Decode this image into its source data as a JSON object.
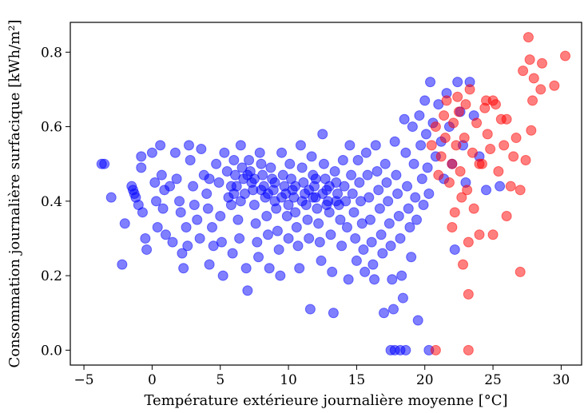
{
  "chart_data": {
    "type": "scatter",
    "xlabel": "Température extérieure journalière moyenne [°C]",
    "ylabel": "Consommation journalière surfacique [kWh/m²]",
    "xlim": [
      -6,
      31.5
    ],
    "ylim": [
      -0.04,
      0.88
    ],
    "x_ticks": [
      -5,
      0,
      5,
      10,
      15,
      20,
      25,
      30
    ],
    "y_ticks": [
      0.0,
      0.2,
      0.4,
      0.6,
      0.8
    ],
    "x_tick_labels": [
      "−5",
      "0",
      "5",
      "10",
      "15",
      "20",
      "25",
      "30"
    ],
    "y_tick_labels": [
      "0.0",
      "0.2",
      "0.4",
      "0.6",
      "0.8"
    ],
    "grid": false,
    "series": [
      {
        "color": "#0000ff",
        "points": [
          [
            -3.7,
            0.5
          ],
          [
            -3.5,
            0.5
          ],
          [
            -3.0,
            0.41
          ],
          [
            -2.2,
            0.23
          ],
          [
            -2.0,
            0.34
          ],
          [
            -1.5,
            0.44
          ],
          [
            -1.4,
            0.43
          ],
          [
            -1.3,
            0.42
          ],
          [
            -1.2,
            0.41
          ],
          [
            -1.0,
            0.39
          ],
          [
            -0.8,
            0.52
          ],
          [
            -0.8,
            0.49
          ],
          [
            -0.7,
            0.37
          ],
          [
            -0.5,
            0.3
          ],
          [
            -0.4,
            0.27
          ],
          [
            0.0,
            0.53
          ],
          [
            0.2,
            0.45
          ],
          [
            0.3,
            0.4
          ],
          [
            0.4,
            0.33
          ],
          [
            0.6,
            0.55
          ],
          [
            0.7,
            0.47
          ],
          [
            0.8,
            0.38
          ],
          [
            0.9,
            0.43
          ],
          [
            1.0,
            0.31
          ],
          [
            1.3,
            0.44
          ],
          [
            1.5,
            0.29
          ],
          [
            1.7,
            0.53
          ],
          [
            1.8,
            0.46
          ],
          [
            2.0,
            0.4
          ],
          [
            2.1,
            0.37
          ],
          [
            2.2,
            0.26
          ],
          [
            2.3,
            0.22
          ],
          [
            2.5,
            0.33
          ],
          [
            2.6,
            0.28
          ],
          [
            2.7,
            0.55
          ],
          [
            2.8,
            0.51
          ],
          [
            3.0,
            0.44
          ],
          [
            3.1,
            0.39
          ],
          [
            3.3,
            0.35
          ],
          [
            3.5,
            0.3
          ],
          [
            3.6,
            0.54
          ],
          [
            3.8,
            0.47
          ],
          [
            4.0,
            0.42
          ],
          [
            4.1,
            0.38
          ],
          [
            4.2,
            0.23
          ],
          [
            4.4,
            0.33
          ],
          [
            4.5,
            0.28
          ],
          [
            4.7,
            0.5
          ],
          [
            4.9,
            0.45
          ],
          [
            5.0,
            0.36
          ],
          [
            5.1,
            0.29
          ],
          [
            5.2,
            0.2
          ],
          [
            5.3,
            0.53
          ],
          [
            5.5,
            0.48
          ],
          [
            5.6,
            0.41
          ],
          [
            5.8,
            0.39
          ],
          [
            5.9,
            0.26
          ],
          [
            6.0,
            0.51
          ],
          [
            6.1,
            0.47
          ],
          [
            6.2,
            0.44
          ],
          [
            6.3,
            0.35
          ],
          [
            6.4,
            0.3
          ],
          [
            6.5,
            0.55
          ],
          [
            6.6,
            0.49
          ],
          [
            6.7,
            0.46
          ],
          [
            6.8,
            0.42
          ],
          [
            6.9,
            0.22
          ],
          [
            7.0,
            0.16
          ],
          [
            7.1,
            0.51
          ],
          [
            7.2,
            0.48
          ],
          [
            7.3,
            0.45
          ],
          [
            7.4,
            0.43
          ],
          [
            7.5,
            0.39
          ],
          [
            7.6,
            0.34
          ],
          [
            7.7,
            0.29
          ],
          [
            7.8,
            0.25
          ],
          [
            7.9,
            0.53
          ],
          [
            8.0,
            0.5
          ],
          [
            8.1,
            0.47
          ],
          [
            8.2,
            0.44
          ],
          [
            8.3,
            0.41
          ],
          [
            8.4,
            0.36
          ],
          [
            8.5,
            0.31
          ],
          [
            8.6,
            0.22
          ],
          [
            8.7,
            0.49
          ],
          [
            8.8,
            0.46
          ],
          [
            8.9,
            0.43
          ],
          [
            9.0,
            0.4
          ],
          [
            9.1,
            0.38
          ],
          [
            9.2,
            0.32
          ],
          [
            9.3,
            0.27
          ],
          [
            9.4,
            0.2
          ],
          [
            9.5,
            0.53
          ],
          [
            9.6,
            0.47
          ],
          [
            9.7,
            0.44
          ],
          [
            9.8,
            0.42
          ],
          [
            9.9,
            0.36
          ],
          [
            10.0,
            0.3
          ],
          [
            10.1,
            0.5
          ],
          [
            10.2,
            0.46
          ],
          [
            10.3,
            0.43
          ],
          [
            10.4,
            0.41
          ],
          [
            10.5,
            0.37
          ],
          [
            10.6,
            0.33
          ],
          [
            10.7,
            0.28
          ],
          [
            10.8,
            0.22
          ],
          [
            10.9,
            0.55
          ],
          [
            11.0,
            0.49
          ],
          [
            11.1,
            0.45
          ],
          [
            11.2,
            0.42
          ],
          [
            11.3,
            0.39
          ],
          [
            11.4,
            0.35
          ],
          [
            11.5,
            0.3
          ],
          [
            11.6,
            0.11
          ],
          [
            11.7,
            0.52
          ],
          [
            11.8,
            0.47
          ],
          [
            11.9,
            0.44
          ],
          [
            12.0,
            0.41
          ],
          [
            12.1,
            0.38
          ],
          [
            12.2,
            0.34
          ],
          [
            12.3,
            0.29
          ],
          [
            12.4,
            0.24
          ],
          [
            12.5,
            0.58
          ],
          [
            12.6,
            0.5
          ],
          [
            12.7,
            0.46
          ],
          [
            12.8,
            0.43
          ],
          [
            12.9,
            0.4
          ],
          [
            13.0,
            0.37
          ],
          [
            13.1,
            0.31
          ],
          [
            13.2,
            0.21
          ],
          [
            13.3,
            0.1
          ],
          [
            13.4,
            0.48
          ],
          [
            13.5,
            0.45
          ],
          [
            13.6,
            0.42
          ],
          [
            13.7,
            0.39
          ],
          [
            13.8,
            0.35
          ],
          [
            13.9,
            0.28
          ],
          [
            14.0,
            0.51
          ],
          [
            14.1,
            0.44
          ],
          [
            14.2,
            0.4
          ],
          [
            14.3,
            0.33
          ],
          [
            14.4,
            0.19
          ],
          [
            14.5,
            0.55
          ],
          [
            14.6,
            0.47
          ],
          [
            14.7,
            0.42
          ],
          [
            14.8,
            0.37
          ],
          [
            14.9,
            0.3
          ],
          [
            15.0,
            0.24
          ],
          [
            15.1,
            0.51
          ],
          [
            15.2,
            0.45
          ],
          [
            15.3,
            0.4
          ],
          [
            15.4,
            0.34
          ],
          [
            15.5,
            0.27
          ],
          [
            15.6,
            0.21
          ],
          [
            15.7,
            0.53
          ],
          [
            15.8,
            0.47
          ],
          [
            15.9,
            0.41
          ],
          [
            16.0,
            0.35
          ],
          [
            16.1,
            0.29
          ],
          [
            16.2,
            0.23
          ],
          [
            16.3,
            0.19
          ],
          [
            16.4,
            0.55
          ],
          [
            16.5,
            0.48
          ],
          [
            16.6,
            0.43
          ],
          [
            16.7,
            0.38
          ],
          [
            16.8,
            0.31
          ],
          [
            16.9,
            0.26
          ],
          [
            17.0,
            0.1
          ],
          [
            17.1,
            0.5
          ],
          [
            17.2,
            0.45
          ],
          [
            17.3,
            0.4
          ],
          [
            17.4,
            0.34
          ],
          [
            17.5,
            0.28
          ],
          [
            17.6,
            0.19
          ],
          [
            17.7,
            0.11
          ],
          [
            17.8,
            0.56
          ],
          [
            17.9,
            0.47
          ],
          [
            18.0,
            0.42
          ],
          [
            18.1,
            0.36
          ],
          [
            18.2,
            0.3
          ],
          [
            18.3,
            0.2
          ],
          [
            18.4,
            0.14
          ],
          [
            18.5,
            0.62
          ],
          [
            18.6,
            0.53
          ],
          [
            18.7,
            0.44
          ],
          [
            18.8,
            0.38
          ],
          [
            18.9,
            0.33
          ],
          [
            19.0,
            0.25
          ],
          [
            19.1,
            0.6
          ],
          [
            19.2,
            0.5
          ],
          [
            19.3,
            0.41
          ],
          [
            19.4,
            0.35
          ],
          [
            19.5,
            0.08
          ],
          [
            19.6,
            0.63
          ],
          [
            19.7,
            0.55
          ],
          [
            19.8,
            0.46
          ],
          [
            19.9,
            0.39
          ],
          [
            20.0,
            0.67
          ],
          [
            20.1,
            0.58
          ],
          [
            20.2,
            0.49
          ],
          [
            20.3,
            0.42
          ],
          [
            20.4,
            0.72
          ],
          [
            20.6,
            0.61
          ],
          [
            20.8,
            0.52
          ],
          [
            21.0,
            0.66
          ],
          [
            21.2,
            0.56
          ],
          [
            21.4,
            0.46
          ],
          [
            21.6,
            0.69
          ],
          [
            21.8,
            0.6
          ],
          [
            22.0,
            0.5
          ],
          [
            22.2,
            0.27
          ],
          [
            22.4,
            0.72
          ],
          [
            22.6,
            0.64
          ],
          [
            22.8,
            0.55
          ],
          [
            23.0,
            0.45
          ],
          [
            23.3,
            0.72
          ],
          [
            23.6,
            0.63
          ],
          [
            24.0,
            0.52
          ],
          [
            24.5,
            0.43
          ],
          [
            25.5,
            0.44
          ],
          [
            4.2,
            0.46
          ],
          [
            5.8,
            0.44
          ],
          [
            6.5,
            0.4
          ],
          [
            7.0,
            0.47
          ],
          [
            8.0,
            0.43
          ],
          [
            9.5,
            0.41
          ],
          [
            10.5,
            0.44
          ],
          [
            11.0,
            0.4
          ],
          [
            11.5,
            0.43
          ],
          [
            12.0,
            0.46
          ],
          [
            12.5,
            0.42
          ],
          [
            13.0,
            0.44
          ],
          [
            13.5,
            0.4
          ],
          [
            9.0,
            0.45
          ],
          [
            8.5,
            0.42
          ],
          [
            7.5,
            0.46
          ],
          [
            6.0,
            0.42
          ],
          [
            10.0,
            0.39
          ],
          [
            11.8,
            0.41
          ],
          [
            12.8,
            0.39
          ],
          [
            17.5,
            0.0
          ],
          [
            17.8,
            0.0
          ],
          [
            18.2,
            0.0
          ],
          [
            18.6,
            0.0
          ],
          [
            20.3,
            0.0
          ]
        ]
      },
      {
        "color": "#ff0000",
        "points": [
          [
            20.5,
            0.55
          ],
          [
            20.8,
            0.6
          ],
          [
            21.0,
            0.47
          ],
          [
            21.2,
            0.52
          ],
          [
            21.4,
            0.63
          ],
          [
            21.5,
            0.57
          ],
          [
            21.6,
            0.67
          ],
          [
            21.8,
            0.45
          ],
          [
            22.0,
            0.5
          ],
          [
            22.1,
            0.61
          ],
          [
            22.2,
            0.37
          ],
          [
            22.3,
            0.55
          ],
          [
            22.4,
            0.68
          ],
          [
            22.5,
            0.64
          ],
          [
            22.6,
            0.48
          ],
          [
            22.7,
            0.41
          ],
          [
            22.8,
            0.23
          ],
          [
            22.9,
            0.57
          ],
          [
            23.0,
            0.66
          ],
          [
            23.1,
            0.43
          ],
          [
            23.2,
            0.29
          ],
          [
            23.2,
            0.15
          ],
          [
            23.3,
            0.7
          ],
          [
            23.5,
            0.53
          ],
          [
            23.6,
            0.38
          ],
          [
            23.8,
            0.61
          ],
          [
            24.0,
            0.31
          ],
          [
            24.2,
            0.5
          ],
          [
            24.4,
            0.65
          ],
          [
            24.5,
            0.67
          ],
          [
            24.6,
            0.58
          ],
          [
            24.8,
            0.54
          ],
          [
            25.0,
            0.31
          ],
          [
            25.2,
            0.66
          ],
          [
            25.4,
            0.48
          ],
          [
            25.6,
            0.62
          ],
          [
            25.8,
            0.55
          ],
          [
            26.0,
            0.36
          ],
          [
            26.3,
            0.44
          ],
          [
            26.5,
            0.52
          ],
          [
            26.7,
            0.57
          ],
          [
            27.0,
            0.43
          ],
          [
            27.0,
            0.21
          ],
          [
            27.2,
            0.75
          ],
          [
            27.4,
            0.51
          ],
          [
            27.6,
            0.84
          ],
          [
            27.7,
            0.78
          ],
          [
            27.8,
            0.59
          ],
          [
            27.9,
            0.67
          ],
          [
            28.0,
            0.73
          ],
          [
            28.5,
            0.7
          ],
          [
            28.6,
            0.77
          ],
          [
            29.5,
            0.71
          ],
          [
            30.3,
            0.79
          ],
          [
            20.8,
            0.0
          ],
          [
            23.2,
            0.0
          ],
          [
            25.0,
            0.67
          ],
          [
            26.0,
            0.62
          ],
          [
            24.0,
            0.5
          ],
          [
            22.0,
            0.33
          ]
        ]
      }
    ]
  }
}
